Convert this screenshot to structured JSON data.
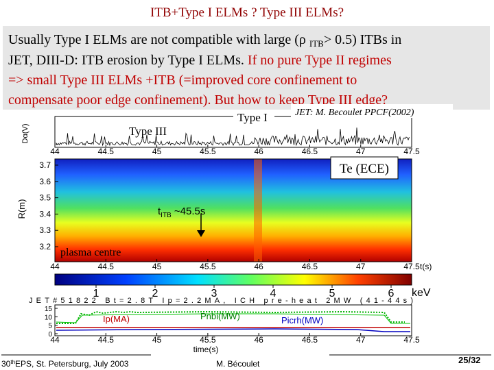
{
  "title": "ITB+Type I ELMs ? Type III ELMs?",
  "box": {
    "line1": [
      "Usually Type I ELMs are not compatible with large (ρ ",
      "ITB",
      "> 0.5) ITBs in"
    ],
    "line2": [
      "JET, DIII-D: ITB erosion by Type I ELMs. ",
      "If no pure Type II regimes"
    ],
    "line3": "=> small Type III ELMs +ITB (=improved core confinement to",
    "line4": "compensate poor edge confinement). But  how to keep Type III edge?"
  },
  "figure": {
    "credit": "JET: M. Becoulet PPCF(2002)",
    "type_i": "Type I",
    "type_iii": "Type III",
    "te_label": "Te (ECE)",
    "plasma_centre": "plasma centre",
    "t_itb": [
      "t",
      "ITB",
      " ~45.5s"
    ],
    "dalpha_label": "Dα(V)",
    "r_label": "R(m)",
    "t_label": "t(s)",
    "xticks": [
      44,
      44.5,
      45,
      45.5,
      46,
      46.5,
      47,
      47.5
    ],
    "rticks": [
      3.2,
      3.3,
      3.4,
      3.5,
      3.6,
      3.7
    ],
    "cbar_ticks": [
      1,
      2,
      3,
      4,
      5,
      6
    ],
    "cbar_unit": "keV",
    "shot": "JET#51822 Bt=2.8T Ip=2.2MA, ICH pre-heat 2MW (41-44s)",
    "bottom_yticks": [
      0,
      5,
      10,
      15
    ],
    "ip": "Ip(MA)",
    "pnbi": "Pnbi(MW)",
    "picrh": "Picrh(MW)",
    "time_label": "time(s)"
  },
  "footer": {
    "conf": [
      "30",
      "th",
      "EPS, St. Petersburg, July 2003"
    ],
    "author": "M. Bécoulet",
    "page": "25/32"
  }
}
